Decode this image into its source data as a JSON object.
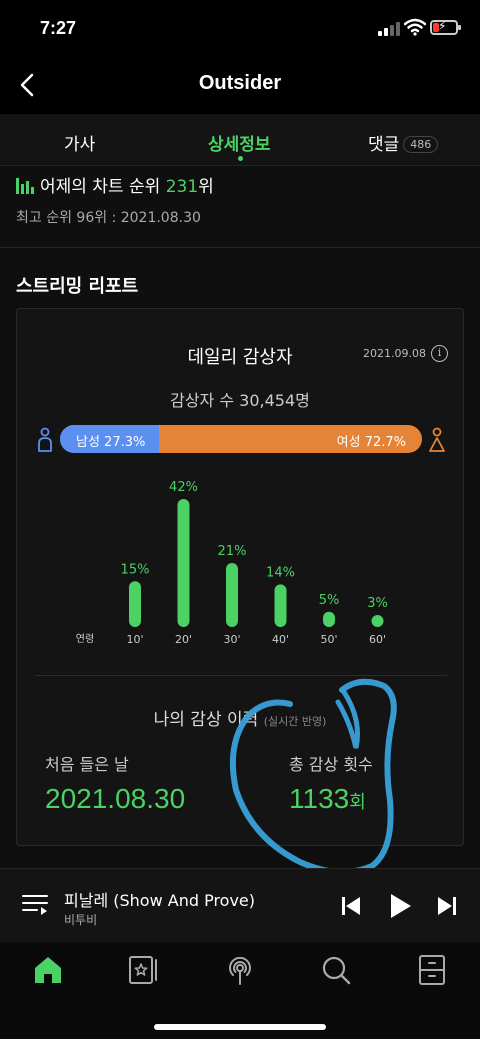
{
  "status_bar": {
    "time": "7:27"
  },
  "header": {
    "title": "Outsider"
  },
  "tabs": [
    {
      "label": "가사"
    },
    {
      "label": "상세정보"
    },
    {
      "label": "댓글",
      "count": "486"
    }
  ],
  "chart": {
    "prefix": "어제의 차트 순위 ",
    "rank": "231",
    "suffix": "위",
    "best": "최고 순위 96위 : 2021.08.30"
  },
  "report": {
    "section_title": "스트리밍 리포트",
    "daily_title": "데일리 감상자",
    "date": "2021.09.08",
    "listeners": "감상자 수 30,454명",
    "male_label": "남성 27.3%",
    "female_label": "여성 72.7%",
    "male_share": 27.3,
    "age_axis_label": "연령"
  },
  "chart_data": {
    "type": "bar",
    "categories": [
      "10'",
      "20'",
      "30'",
      "40'",
      "50'",
      "60'"
    ],
    "values": [
      15,
      42,
      21,
      14,
      5,
      3
    ],
    "value_labels": [
      "15%",
      "42%",
      "21%",
      "14%",
      "5%",
      "3%"
    ],
    "xlabel": "연령",
    "ylim": [
      0,
      42
    ],
    "grid": false,
    "color": "#4bd164"
  },
  "history": {
    "title": "나의 감상 이력",
    "subtitle": "(실시간 반영)",
    "first_label": "처음 들은 날",
    "first_value": "2021.08.30",
    "count_label": "총 감상 횟수",
    "count_value": "1133",
    "count_unit": "회"
  },
  "player": {
    "song_title": "피날레 (Show And Prove)",
    "artist": "비투비"
  },
  "colors": {
    "accent": "#4bd164",
    "male": "#5b8ff0",
    "female": "#e58436",
    "scribble": "#3aa0d8"
  }
}
